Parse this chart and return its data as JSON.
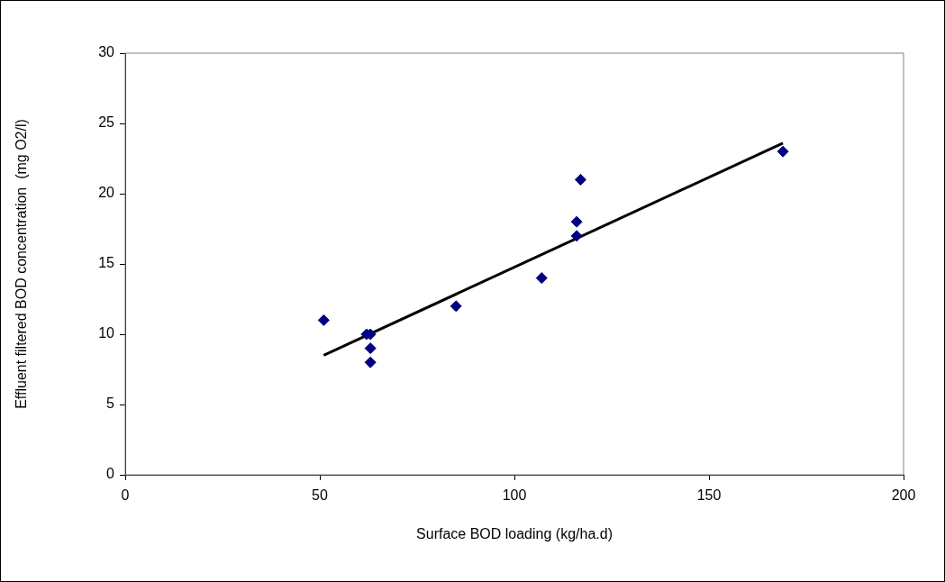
{
  "chart_data": {
    "type": "scatter",
    "xlabel": "Surface BOD loading (kg/ha.d)",
    "ylabel": "Effluent filtered BOD concentration  (mg O2/l)",
    "xlim": [
      0,
      200
    ],
    "xticks": [
      0,
      50,
      100,
      150,
      200
    ],
    "ylim": [
      0,
      30
    ],
    "yticks": [
      0,
      5,
      10,
      15,
      20,
      25,
      30
    ],
    "grid": false,
    "legend": false,
    "marker": "diamond",
    "series": [
      {
        "type": "scatter",
        "color": "#000080",
        "x": [
          51,
          62,
          63,
          63,
          63,
          85,
          107,
          116,
          116,
          117,
          169
        ],
        "values": [
          11,
          10,
          10,
          9,
          8,
          12,
          14,
          18,
          17,
          21,
          23
        ]
      },
      {
        "type": "line",
        "color": "#000000",
        "marker": "none",
        "x": [
          51,
          169
        ],
        "values": [
          8.5,
          23.6
        ]
      }
    ]
  }
}
